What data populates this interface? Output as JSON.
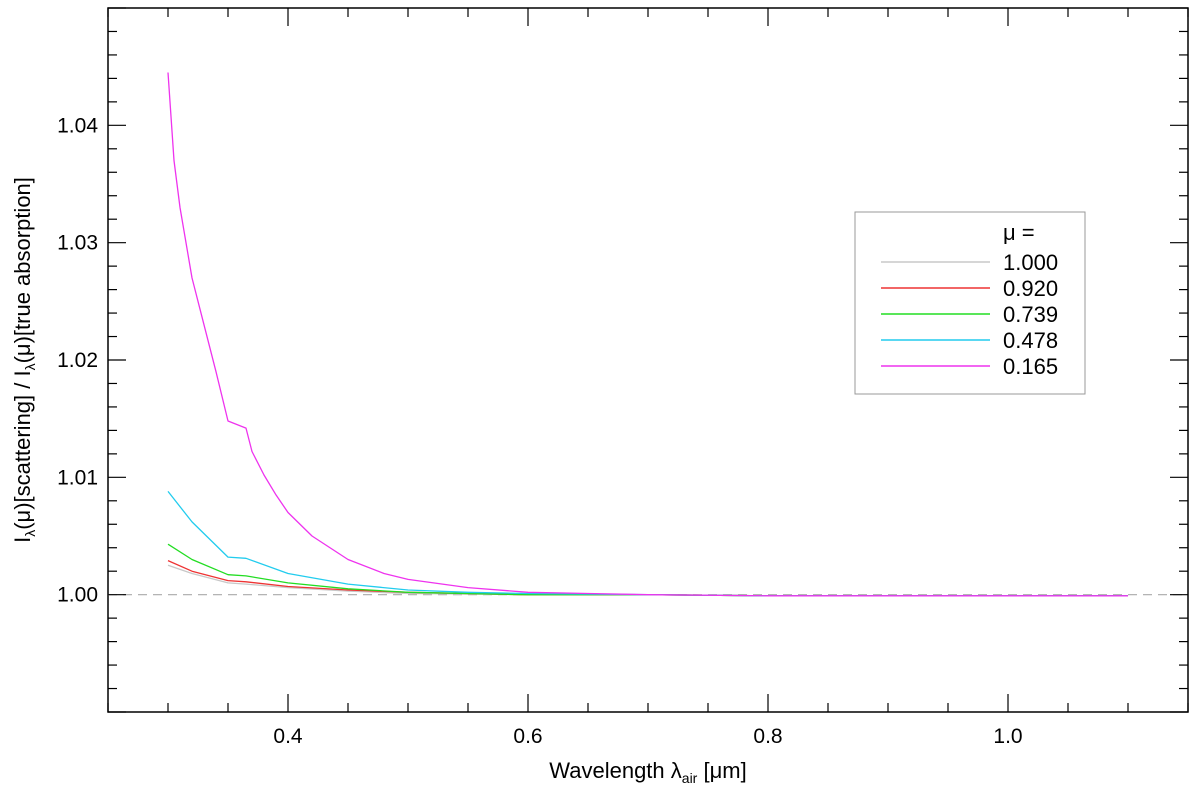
{
  "chart_data": {
    "type": "line",
    "title": "",
    "xlabel": {
      "main": "Wavelength λ",
      "sub": "air",
      "tail": " [μm]"
    },
    "ylabel": {
      "parts": [
        {
          "text": "I",
          "sub": false
        },
        {
          "text": "λ",
          "sub": true
        },
        {
          "text": "(μ)[scattering] / I",
          "sub": false
        },
        {
          "text": "λ",
          "sub": true
        },
        {
          "text": "(μ)[true absorption]",
          "sub": false
        }
      ]
    },
    "xlim": [
      0.25,
      1.15
    ],
    "ylim": [
      0.99,
      1.05
    ],
    "x_ticks": [
      0.4,
      0.6,
      0.8,
      1.0
    ],
    "x_tick_labels": [
      "0.4",
      "0.6",
      "0.8",
      "1.0"
    ],
    "y_ticks": [
      1.0,
      1.01,
      1.02,
      1.03,
      1.04
    ],
    "y_tick_labels": [
      "1.00",
      "1.01",
      "1.02",
      "1.03",
      "1.04"
    ],
    "reference_line": {
      "y": 1.0,
      "style": "dashed",
      "color": "#aaaaaa"
    },
    "grid": false,
    "legend": {
      "placement": "right",
      "title": "μ ="
    },
    "series": [
      {
        "name": "1.000",
        "color": "#c8c8c8",
        "x": [
          0.3,
          0.32,
          0.35,
          0.365,
          0.4,
          0.45,
          0.5,
          0.6,
          0.7,
          0.8,
          0.9,
          1.0,
          1.1
        ],
        "y": [
          1.0025,
          1.0018,
          1.001,
          1.0009,
          1.0006,
          1.0003,
          1.0001,
          1.0,
          1.0,
          0.9999,
          0.9999,
          0.9999,
          0.9999
        ]
      },
      {
        "name": "0.920",
        "color": "#ee3333",
        "x": [
          0.3,
          0.32,
          0.35,
          0.365,
          0.4,
          0.45,
          0.5,
          0.6,
          0.7,
          0.8,
          0.9,
          1.0,
          1.1
        ],
        "y": [
          1.0029,
          1.002,
          1.0012,
          1.0011,
          1.0007,
          1.0004,
          1.0002,
          1.0,
          1.0,
          0.9999,
          0.9999,
          0.9999,
          0.9999
        ]
      },
      {
        "name": "0.739",
        "color": "#22dd22",
        "x": [
          0.3,
          0.32,
          0.35,
          0.365,
          0.4,
          0.45,
          0.5,
          0.6,
          0.7,
          0.8,
          0.9,
          1.0,
          1.1
        ],
        "y": [
          1.0043,
          1.003,
          1.0017,
          1.0016,
          1.001,
          1.0005,
          1.0002,
          1.0,
          1.0,
          0.9999,
          0.9999,
          0.9999,
          0.9999
        ]
      },
      {
        "name": "0.478",
        "color": "#22ccee",
        "x": [
          0.3,
          0.32,
          0.35,
          0.365,
          0.4,
          0.45,
          0.5,
          0.55,
          0.6,
          0.7,
          0.8,
          0.9,
          1.0,
          1.1
        ],
        "y": [
          1.0088,
          1.0062,
          1.0032,
          1.0031,
          1.0018,
          1.0009,
          1.0004,
          1.0002,
          1.0001,
          1.0,
          0.9999,
          0.9999,
          0.9999,
          0.9999
        ]
      },
      {
        "name": "0.165",
        "color": "#ee33ee",
        "x": [
          0.3,
          0.305,
          0.31,
          0.32,
          0.33,
          0.34,
          0.35,
          0.365,
          0.37,
          0.38,
          0.39,
          0.4,
          0.42,
          0.45,
          0.48,
          0.5,
          0.55,
          0.6,
          0.65,
          0.7,
          0.8,
          0.9,
          1.0,
          1.1
        ],
        "y": [
          1.0445,
          1.037,
          1.033,
          1.027,
          1.023,
          1.019,
          1.0148,
          1.0142,
          1.0122,
          1.0102,
          1.0085,
          1.007,
          1.005,
          1.003,
          1.0018,
          1.0013,
          1.0006,
          1.0002,
          1.0001,
          1.0,
          0.9999,
          0.9999,
          0.9999,
          0.9999
        ]
      }
    ]
  }
}
